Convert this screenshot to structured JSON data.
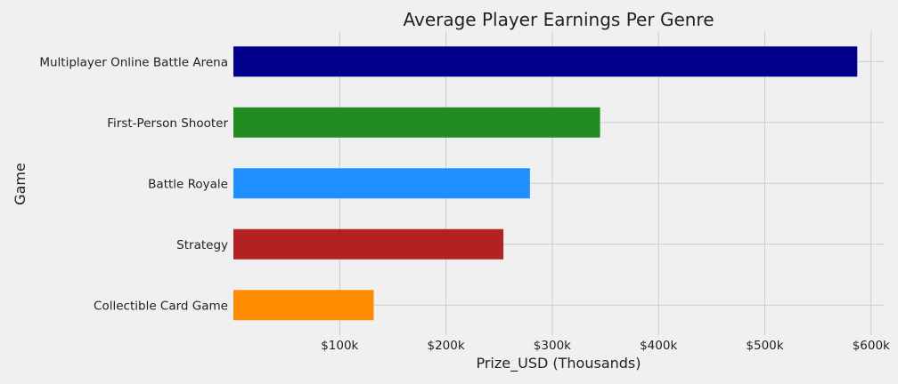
{
  "chart_data": {
    "type": "bar",
    "orientation": "horizontal",
    "title": "Average Player Earnings Per Genre",
    "xlabel": "Prize_USD (Thousands)",
    "ylabel": "Game",
    "categories": [
      "Collectible Card Game",
      "Strategy",
      "Battle Royale",
      "First-Person Shooter",
      "Multiplayer Online Battle Arena"
    ],
    "values": [
      132,
      254,
      279,
      345,
      587
    ],
    "colors": [
      "#ff8c00",
      "#b22222",
      "#1e90ff",
      "#228b22",
      "#00008b"
    ],
    "xticks": [
      100,
      200,
      300,
      400,
      500,
      600
    ],
    "xtick_labels": [
      "$100k",
      "$200k",
      "$300k",
      "$400k",
      "$500k",
      "$600k"
    ],
    "xlim": [
      0,
      615
    ],
    "grid": true,
    "legend": "none"
  }
}
